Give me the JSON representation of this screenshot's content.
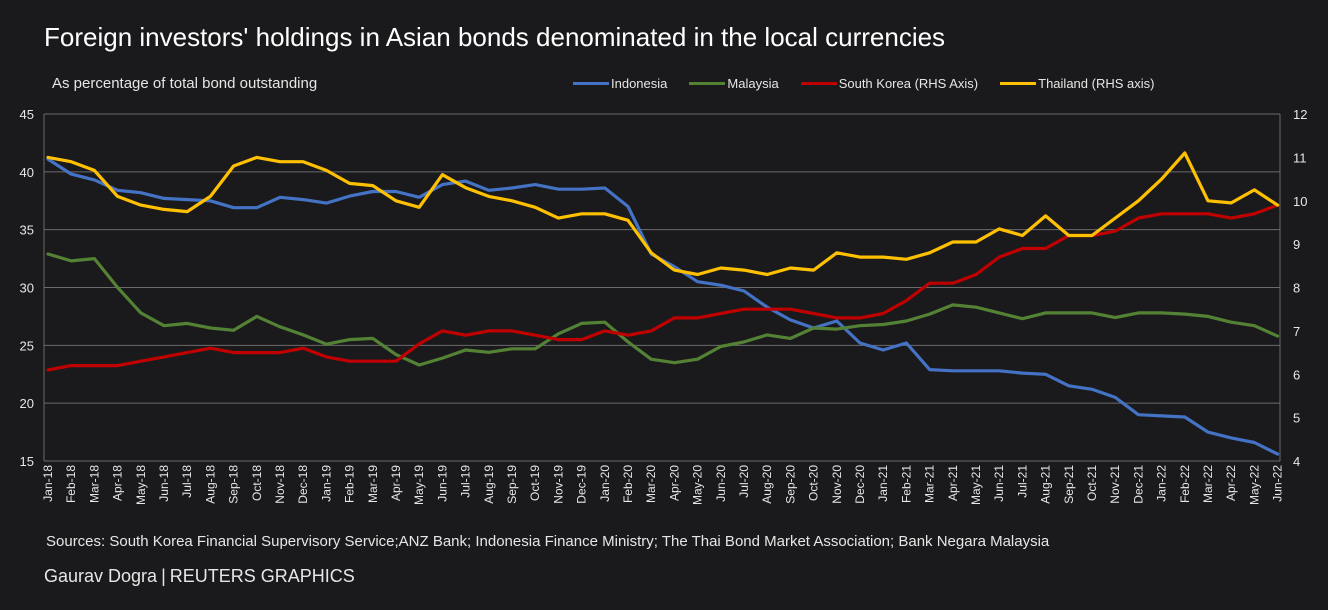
{
  "title": "Foreign investors' holdings in Asian bonds denominated in the local currencies",
  "subtitle": "As percentage of total bond outstanding",
  "sources": "Sources: South Korea Financial Supervisory Service;ANZ Bank; Indonesia Finance Ministry; The Thai Bond Market Association; Bank Negara Malaysia",
  "credit": {
    "author": "Gaurav Dogra",
    "separator": "|",
    "org": "REUTERS GRAPHICS"
  },
  "colors": {
    "background": "#1a1a1d",
    "grid": "#6b6b6b",
    "Indonesia": "#4472c4",
    "Malaysia": "#548235",
    "South Korea": "#c00000",
    "Thailand": "#ffc000"
  },
  "chart_data": {
    "type": "line",
    "grid": true,
    "legend_position": "top",
    "y_left": {
      "min": 15,
      "max": 45,
      "ticks": [
        "15",
        "20",
        "25",
        "30",
        "35",
        "40",
        "45"
      ]
    },
    "y_right": {
      "min": 4,
      "max": 12,
      "ticks": [
        "4",
        "5",
        "6",
        "7",
        "8",
        "9",
        "10",
        "11",
        "12"
      ]
    },
    "categories": [
      "Jan-18",
      "Feb-18",
      "Mar-18",
      "Apr-18",
      "May-18",
      "Jun-18",
      "Jul-18",
      "Aug-18",
      "Sep-18",
      "Oct-18",
      "Nov-18",
      "Dec-18",
      "Jan-19",
      "Feb-19",
      "Mar-19",
      "Apr-19",
      "May-19",
      "Jun-19",
      "Jul-19",
      "Aug-19",
      "Sep-19",
      "Oct-19",
      "Nov-19",
      "Dec-19",
      "Jan-20",
      "Feb-20",
      "Mar-20",
      "Apr-20",
      "May-20",
      "Jun-20",
      "Jul-20",
      "Aug-20",
      "Sep-20",
      "Oct-20",
      "Nov-20",
      "Dec-20",
      "Jan-21",
      "Feb-21",
      "Mar-21",
      "Apr-21",
      "May-21",
      "Jun-21",
      "Jul-21",
      "Aug-21",
      "Sep-21",
      "Oct-21",
      "Nov-21",
      "Dec-21",
      "Jan-22",
      "Feb-22",
      "Mar-22",
      "Apr-22",
      "May-22",
      "Jun-22"
    ],
    "series": [
      {
        "name": "Indonesia",
        "axis": "left",
        "values": [
          41.1,
          39.8,
          39.3,
          38.4,
          38.2,
          37.7,
          37.6,
          37.5,
          36.9,
          36.9,
          37.8,
          37.6,
          37.3,
          37.9,
          38.3,
          38.3,
          37.8,
          38.9,
          39.2,
          38.4,
          38.6,
          38.9,
          38.5,
          38.5,
          38.6,
          37.0,
          32.9,
          31.8,
          30.5,
          30.2,
          29.7,
          28.3,
          27.2,
          26.5,
          27.1,
          25.2,
          24.6,
          25.2,
          22.9,
          22.8,
          22.8,
          22.8,
          22.6,
          22.5,
          21.5,
          21.2,
          20.5,
          19.0,
          18.9,
          18.8,
          17.5,
          17.0,
          16.6,
          15.6
        ]
      },
      {
        "name": "Malaysia",
        "axis": "left",
        "values": [
          32.9,
          32.3,
          32.5,
          30.0,
          27.8,
          26.7,
          26.9,
          26.5,
          26.3,
          27.5,
          26.6,
          25.9,
          25.1,
          25.5,
          25.6,
          24.2,
          23.3,
          23.9,
          24.6,
          24.4,
          24.7,
          24.7,
          26.0,
          26.9,
          27.0,
          25.3,
          23.8,
          23.5,
          23.8,
          24.9,
          25.3,
          25.9,
          25.6,
          26.5,
          26.4,
          26.7,
          26.8,
          27.1,
          27.7,
          28.5,
          28.3,
          27.8,
          27.3,
          27.8,
          27.8,
          27.8,
          27.4,
          27.8,
          27.8,
          27.7,
          27.5,
          27.0,
          26.7,
          25.8
        ]
      },
      {
        "name": "South Korea (RHS Axis)",
        "axis": "right",
        "values": [
          6.1,
          6.2,
          6.2,
          6.2,
          6.3,
          6.4,
          6.5,
          6.6,
          6.5,
          6.5,
          6.5,
          6.6,
          6.4,
          6.3,
          6.3,
          6.3,
          6.7,
          7.0,
          6.9,
          7.0,
          7.0,
          6.9,
          6.8,
          6.8,
          7.0,
          6.9,
          7.0,
          7.3,
          7.3,
          7.4,
          7.5,
          7.5,
          7.5,
          7.4,
          7.3,
          7.3,
          7.4,
          7.7,
          8.1,
          8.1,
          8.3,
          8.7,
          8.9,
          8.9,
          9.2,
          9.2,
          9.3,
          9.6,
          9.7,
          9.7,
          9.7,
          9.6,
          9.7,
          9.9
        ]
      },
      {
        "name": "Thailand (RHS axis)",
        "axis": "right",
        "values": [
          11.0,
          10.9,
          10.7,
          10.1,
          9.9,
          9.8,
          9.75,
          10.1,
          10.8,
          11.0,
          10.9,
          10.9,
          10.7,
          10.4,
          10.35,
          10.0,
          9.85,
          10.6,
          10.3,
          10.1,
          10.0,
          9.85,
          9.6,
          9.7,
          9.7,
          9.55,
          8.8,
          8.4,
          8.3,
          8.45,
          8.4,
          8.3,
          8.45,
          8.4,
          8.8,
          8.7,
          8.7,
          8.65,
          8.8,
          9.05,
          9.05,
          9.35,
          9.2,
          9.65,
          9.2,
          9.2,
          9.6,
          10.0,
          10.5,
          11.1,
          10.0,
          9.95,
          10.25,
          9.9
        ]
      }
    ]
  }
}
